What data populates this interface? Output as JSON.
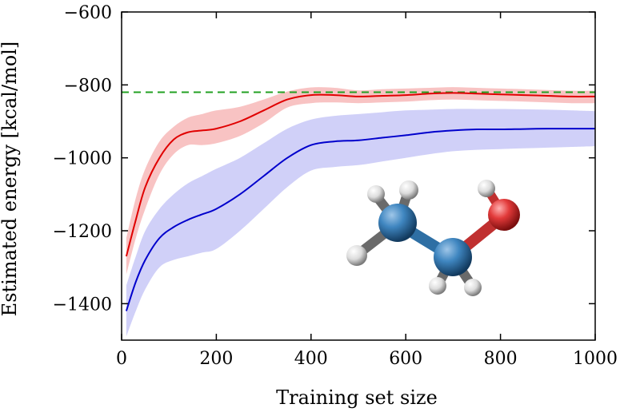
{
  "chart_data": {
    "type": "line",
    "title": "",
    "xlabel": "Training set size",
    "ylabel": "Estimated energy [kcal/mol]",
    "xlim": [
      0,
      1000
    ],
    "ylim": [
      -1500,
      -600
    ],
    "xticks": [
      0,
      200,
      400,
      600,
      800,
      1000
    ],
    "yticks": [
      -1400,
      -1200,
      -1000,
      -800,
      -600
    ],
    "xtick_labels": [
      "0",
      "200",
      "400",
      "600",
      "800",
      "1000"
    ],
    "ytick_labels": [
      "−1400",
      "−1200",
      "−1000",
      "−800",
      "−600"
    ],
    "grid": false,
    "legend": "none",
    "reference_line": {
      "y": -820,
      "color": "#22a022",
      "style": "dashed"
    },
    "series": [
      {
        "color": "#e00000",
        "band_color": "#f7b8b8",
        "x": [
          10,
          30,
          50,
          80,
          110,
          140,
          170,
          200,
          250,
          300,
          350,
          400,
          450,
          500,
          550,
          600,
          650,
          700,
          750,
          800,
          850,
          900,
          950,
          1000
        ],
        "y": [
          -1270,
          -1170,
          -1080,
          -1000,
          -950,
          -930,
          -925,
          -920,
          -900,
          -870,
          -840,
          -828,
          -828,
          -832,
          -830,
          -828,
          -824,
          -822,
          -824,
          -826,
          -828,
          -830,
          -832,
          -832
        ],
        "upper": [
          -1220,
          -1110,
          -1030,
          -955,
          -915,
          -890,
          -880,
          -870,
          -860,
          -840,
          -818,
          -807,
          -808,
          -815,
          -812,
          -810,
          -808,
          -806,
          -808,
          -810,
          -812,
          -814,
          -816,
          -816
        ],
        "lower": [
          -1320,
          -1220,
          -1140,
          -1045,
          -990,
          -965,
          -965,
          -960,
          -940,
          -905,
          -862,
          -850,
          -848,
          -850,
          -848,
          -846,
          -842,
          -840,
          -842,
          -844,
          -846,
          -848,
          -850,
          -850
        ]
      },
      {
        "color": "#0000cc",
        "band_color": "#c8c8f7",
        "x": [
          10,
          30,
          50,
          80,
          110,
          140,
          170,
          200,
          250,
          300,
          350,
          400,
          450,
          500,
          550,
          600,
          650,
          700,
          750,
          800,
          850,
          900,
          950,
          1000
        ],
        "y": [
          -1420,
          -1340,
          -1280,
          -1220,
          -1190,
          -1170,
          -1155,
          -1140,
          -1100,
          -1050,
          -1000,
          -965,
          -955,
          -952,
          -945,
          -938,
          -930,
          -925,
          -922,
          -922,
          -921,
          -920,
          -920,
          -920
        ],
        "upper": [
          -1350,
          -1270,
          -1200,
          -1140,
          -1100,
          -1070,
          -1050,
          -1030,
          -1000,
          -960,
          -920,
          -895,
          -885,
          -880,
          -875,
          -870,
          -868,
          -866,
          -866,
          -866,
          -867,
          -868,
          -870,
          -872
        ],
        "lower": [
          -1490,
          -1420,
          -1360,
          -1300,
          -1280,
          -1270,
          -1260,
          -1250,
          -1200,
          -1140,
          -1080,
          -1035,
          -1025,
          -1020,
          -1010,
          -1000,
          -990,
          -982,
          -978,
          -976,
          -974,
          -972,
          -970,
          -968
        ]
      }
    ]
  },
  "inset": {
    "subject": "ethanol-molecule",
    "atom_colors": {
      "carbon": "#2e6fa4",
      "hydrogen": "#e8e8e8",
      "oxygen": "#e03030"
    }
  }
}
